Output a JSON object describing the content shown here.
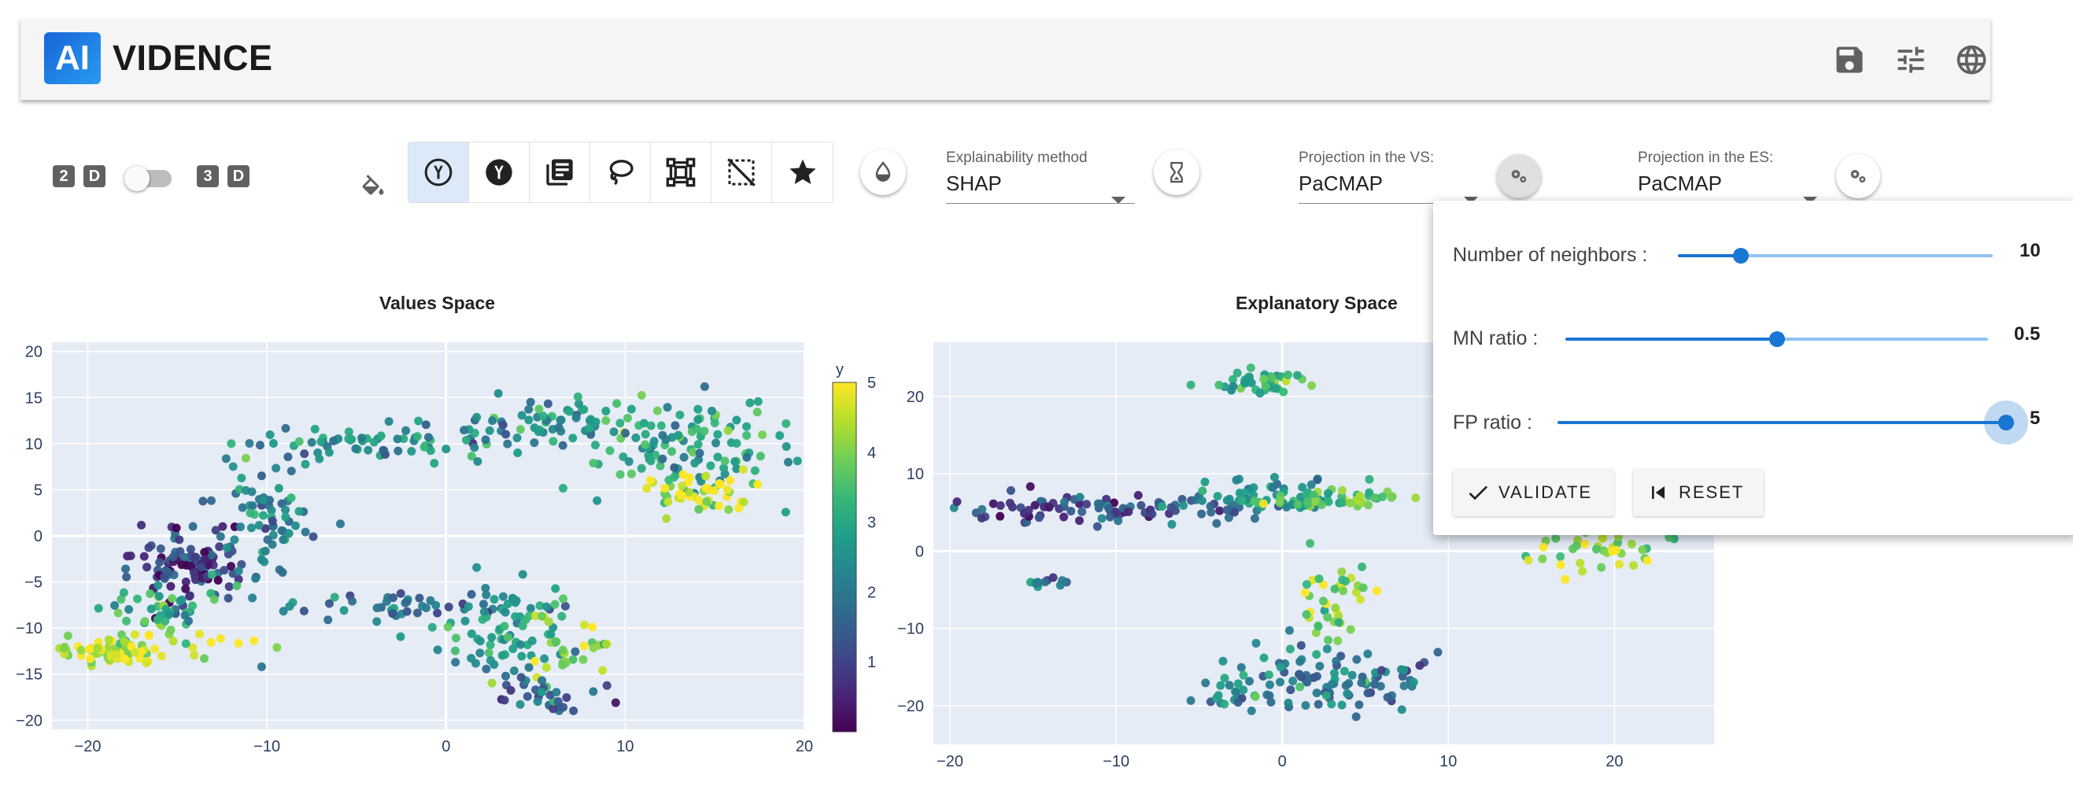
{
  "app": {
    "logo_mark": "AI",
    "logo_text": "VIDENCE"
  },
  "appbar_icons": [
    "save-icon",
    "tune-icon",
    "globe-icon"
  ],
  "dim_toggle": {
    "left": [
      "2",
      "D"
    ],
    "right": [
      "3",
      "D"
    ],
    "value": "2D"
  },
  "color_tools": [
    "y-circle-outline",
    "y-circle-filled",
    "library",
    "lasso",
    "cluster",
    "select-off",
    "star"
  ],
  "explainability": {
    "label": "Explainability method",
    "value": "SHAP"
  },
  "projection_vs": {
    "label": "Projection in the VS:",
    "value": "PaCMAP"
  },
  "projection_es": {
    "label": "Projection in the ES:",
    "value": "PaCMAP"
  },
  "popover": {
    "neighbors": {
      "label": "Number of neighbors :",
      "value": "10",
      "fraction": 0.2
    },
    "mn_ratio": {
      "label": "MN ratio :",
      "value": "0.5",
      "fraction": 0.5
    },
    "fp_ratio": {
      "label": "FP ratio :",
      "value": "5",
      "fraction": 1.0
    },
    "validate_label": "VALIDATE",
    "reset_label": "RESET"
  },
  "chart_data": [
    {
      "type": "scatter",
      "title": "Values Space",
      "xlim": [
        -22,
        20
      ],
      "ylim": [
        -21,
        21
      ],
      "x_ticks": [
        -20,
        -10,
        0,
        10,
        20
      ],
      "y_ticks": [
        20,
        15,
        10,
        5,
        0,
        -5,
        -10,
        -15,
        -20
      ],
      "colorbar": {
        "title": "y",
        "range": [
          0,
          5
        ],
        "ticks": [
          5,
          4,
          3,
          2,
          1
        ],
        "colormap": "viridis"
      },
      "clusters": [
        {
          "x": -18,
          "y": -12.5,
          "sx": 2.2,
          "sy": 1.0,
          "n": 80,
          "c": 4.5
        },
        {
          "x": -14,
          "y": -3,
          "sx": 1.6,
          "sy": 2.2,
          "n": 110,
          "c": 1.0
        },
        {
          "x": -10,
          "y": 2,
          "sx": 1.3,
          "sy": 4,
          "n": 70,
          "c": 2.2
        },
        {
          "x": -4,
          "y": 10,
          "sx": 3.5,
          "sy": 1.2,
          "n": 60,
          "c": 2.6
        },
        {
          "x": 5,
          "y": 12,
          "sx": 2.5,
          "sy": 1.5,
          "n": 60,
          "c": 2.4
        },
        {
          "x": 13,
          "y": 10,
          "sx": 3,
          "sy": 3,
          "n": 130,
          "c": 3.0
        },
        {
          "x": 14,
          "y": 4.5,
          "sx": 1.5,
          "sy": 1.0,
          "n": 40,
          "c": 5.0
        },
        {
          "x": -2,
          "y": -7.5,
          "sx": 3,
          "sy": 0.8,
          "n": 40,
          "c": 1.8
        },
        {
          "x": 3,
          "y": -11,
          "sx": 2,
          "sy": 2.5,
          "n": 80,
          "c": 2.8
        },
        {
          "x": 7,
          "y": -12,
          "sx": 1.2,
          "sy": 1.5,
          "n": 30,
          "c": 4.2
        },
        {
          "x": 6,
          "y": -17,
          "sx": 1.5,
          "sy": 1.2,
          "n": 30,
          "c": 1.6
        },
        {
          "x": -16,
          "y": -8,
          "sx": 1.5,
          "sy": 1.5,
          "n": 40,
          "c": 3.2
        }
      ]
    },
    {
      "type": "scatter",
      "title": "Explanatory Space",
      "xlim": [
        -21,
        26
      ],
      "ylim": [
        -25,
        27
      ],
      "x_ticks": [
        -20,
        -10,
        0,
        10,
        20
      ],
      "y_ticks": [
        20,
        10,
        0,
        -10,
        -20
      ],
      "clusters": [
        {
          "x": -14,
          "y": 5.5,
          "sx": 3.5,
          "sy": 1.0,
          "n": 60,
          "c": 1.0
        },
        {
          "x": -6,
          "y": 5.5,
          "sx": 3,
          "sy": 1.0,
          "n": 40,
          "c": 1.8
        },
        {
          "x": 0,
          "y": 7,
          "sx": 2.5,
          "sy": 1.2,
          "n": 60,
          "c": 2.8
        },
        {
          "x": 4,
          "y": 6.5,
          "sx": 2,
          "sy": 0.6,
          "n": 35,
          "c": 3.8
        },
        {
          "x": -1,
          "y": 22,
          "sx": 1.5,
          "sy": 0.8,
          "n": 40,
          "c": 3.2
        },
        {
          "x": -14,
          "y": -4,
          "sx": 0.8,
          "sy": 0.4,
          "n": 12,
          "c": 2.0
        },
        {
          "x": 3,
          "y": -6,
          "sx": 1,
          "sy": 2.5,
          "n": 40,
          "c": 4.2
        },
        {
          "x": 3,
          "y": -16,
          "sx": 2.5,
          "sy": 2.5,
          "n": 90,
          "c": 2.0
        },
        {
          "x": -2,
          "y": -19,
          "sx": 1.5,
          "sy": 1.5,
          "n": 25,
          "c": 2.5
        },
        {
          "x": 19,
          "y": 0,
          "sx": 2,
          "sy": 1.5,
          "n": 40,
          "c": 4.4
        }
      ]
    }
  ]
}
